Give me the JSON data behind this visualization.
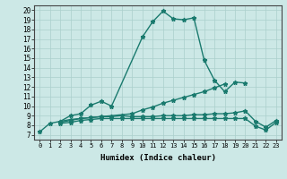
{
  "xlabel": "Humidex (Indice chaleur)",
  "xlim": [
    -0.5,
    23.5
  ],
  "ylim": [
    6.5,
    20.5
  ],
  "xticks": [
    0,
    1,
    2,
    3,
    4,
    5,
    6,
    7,
    8,
    9,
    10,
    11,
    12,
    13,
    14,
    15,
    16,
    17,
    18,
    19,
    20,
    21,
    22,
    23
  ],
  "yticks": [
    7,
    8,
    9,
    10,
    11,
    12,
    13,
    14,
    15,
    16,
    17,
    18,
    19,
    20
  ],
  "bg_color": "#cce8e6",
  "grid_color": "#aacfcc",
  "line_color": "#1a7a6e",
  "line_width": 1.0,
  "marker_size": 3.5,
  "curves": [
    {
      "x": [
        0,
        1,
        2,
        3,
        4,
        5,
        6,
        7,
        10,
        11,
        12,
        13,
        14,
        15,
        16,
        17,
        18,
        19,
        20
      ],
      "y": [
        7.3,
        8.2,
        8.4,
        9.0,
        9.2,
        10.1,
        10.5,
        10.0,
        17.2,
        18.8,
        19.9,
        19.1,
        19.0,
        19.2,
        14.8,
        12.7,
        11.5,
        12.5,
        12.4
      ]
    },
    {
      "x": [
        2,
        3,
        9,
        10,
        11,
        12,
        13,
        14,
        15,
        16,
        17,
        18
      ],
      "y": [
        8.4,
        8.6,
        9.2,
        9.6,
        9.9,
        10.3,
        10.6,
        10.9,
        11.2,
        11.5,
        11.9,
        12.3
      ]
    },
    {
      "x": [
        2,
        3,
        4,
        5,
        6,
        7,
        8,
        9,
        10,
        11,
        12,
        13,
        14,
        15,
        16,
        17,
        18,
        19,
        20,
        21,
        22,
        23
      ],
      "y": [
        8.3,
        8.5,
        8.7,
        8.8,
        8.9,
        8.9,
        9.0,
        8.9,
        8.9,
        8.9,
        9.0,
        9.0,
        9.0,
        9.1,
        9.1,
        9.2,
        9.2,
        9.3,
        9.5,
        8.4,
        7.8,
        8.5
      ]
    },
    {
      "x": [
        2,
        3,
        4,
        5,
        6,
        7,
        8,
        9,
        10,
        11,
        12,
        13,
        14,
        15,
        16,
        17,
        18,
        19,
        20,
        21,
        22,
        23
      ],
      "y": [
        8.2,
        8.3,
        8.5,
        8.6,
        8.7,
        8.7,
        8.7,
        8.7,
        8.7,
        8.7,
        8.7,
        8.7,
        8.7,
        8.7,
        8.7,
        8.7,
        8.7,
        8.7,
        8.7,
        7.9,
        7.5,
        8.3
      ]
    }
  ]
}
